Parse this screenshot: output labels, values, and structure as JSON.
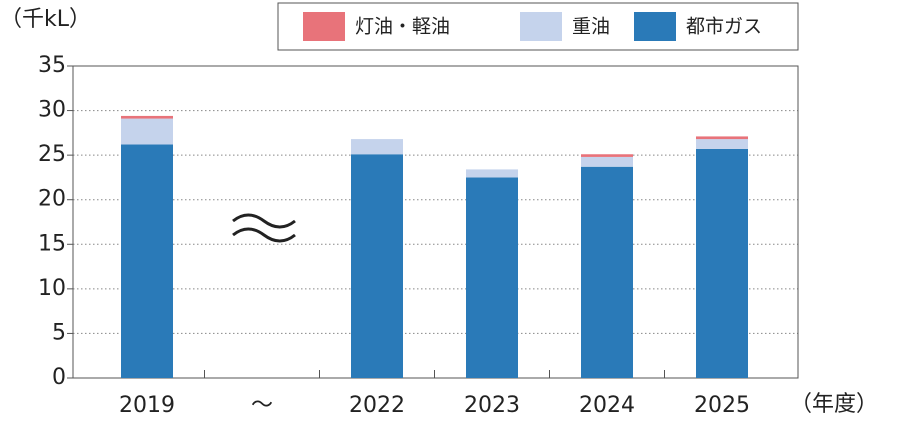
{
  "chart_data": {
    "type": "stacked_bar",
    "y_label": "（千kL）",
    "x_label": "（年度）",
    "categories": [
      "2019",
      "〜",
      "2022",
      "2023",
      "2024",
      "2025"
    ],
    "series": [
      {
        "name": "灯油・軽油",
        "color": "#e8737a",
        "values": [
          0.3,
          null,
          0,
          0,
          0.3,
          0.3
        ]
      },
      {
        "name": "重油",
        "color": "#c5d3ec",
        "values": [
          2.9,
          null,
          1.7,
          0.9,
          1.1,
          1.1
        ]
      },
      {
        "name": "都市ガス",
        "color": "#2a7ab8",
        "values": [
          26.2,
          null,
          25.1,
          22.5,
          23.7,
          25.7
        ]
      }
    ],
    "ylim": [
      0,
      35
    ],
    "yticks": [
      0,
      5,
      10,
      15,
      20,
      25,
      30,
      35
    ],
    "grid": true
  }
}
